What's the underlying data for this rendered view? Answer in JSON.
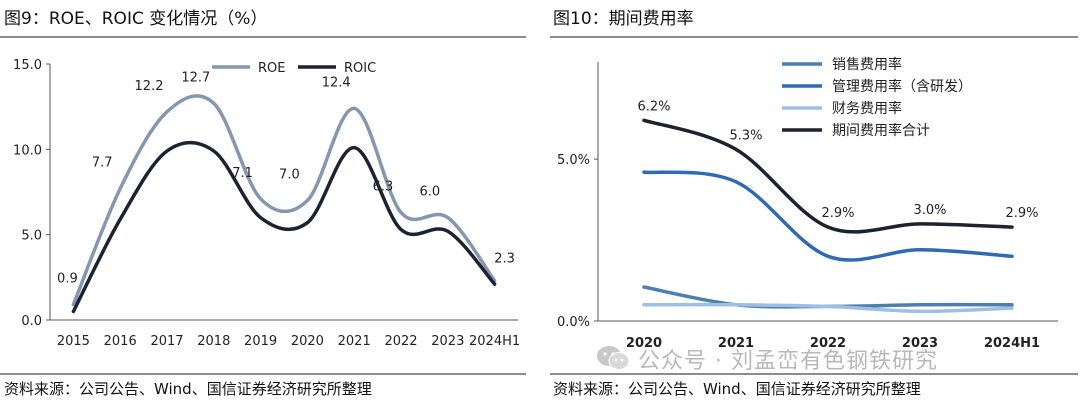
{
  "charts": [
    {
      "title": "图9：ROE、ROIC 变化情况（%）",
      "source": "资料来源：公司公告、Wind、国信证券经济研究所整理"
    },
    {
      "title": "图10：期间费用率",
      "source": "资料来源：公司公告、Wind、国信证券经济研究所整理"
    }
  ],
  "watermark": "公众号 · 刘孟峦有色钢铁研究",
  "chart_data": [
    {
      "type": "line",
      "title": "图9：ROE、ROIC 变化情况（%）",
      "categories": [
        "2015",
        "2016",
        "2017",
        "2018",
        "2019",
        "2020",
        "2021",
        "2022",
        "2023",
        "2024H1"
      ],
      "ylim": [
        0,
        15
      ],
      "yticks": [
        "0.0",
        "5.0",
        "10.0",
        "15.0"
      ],
      "legend_position": "top-center",
      "series": [
        {
          "name": "ROE",
          "color": "#8497b0",
          "values": [
            0.9,
            7.7,
            12.2,
            12.7,
            7.1,
            7.0,
            12.4,
            6.3,
            6.0,
            2.3
          ],
          "labels": [
            "0.9",
            "7.7",
            "12.2",
            "12.7",
            "7.1",
            "7.0",
            "12.4",
            "6.3",
            "6.0",
            "2.3"
          ]
        },
        {
          "name": "ROIC",
          "color": "#1c2230",
          "values": [
            0.5,
            5.9,
            9.9,
            9.9,
            6.0,
            5.7,
            10.1,
            5.3,
            5.2,
            2.1
          ]
        }
      ]
    },
    {
      "type": "line",
      "title": "图10：期间费用率",
      "categories": [
        "2020",
        "2021",
        "2022",
        "2023",
        "2024H1"
      ],
      "ylim": [
        0,
        8.0
      ],
      "yticks": [
        "0.0%",
        "5.0%"
      ],
      "legend_position": "top-center",
      "series": [
        {
          "name": "销售费用率",
          "color": "#4a7fb0",
          "values": [
            1.05,
            0.5,
            0.45,
            0.5,
            0.5
          ]
        },
        {
          "name": "管理费用率（含研发）",
          "color": "#2e6bb0",
          "values": [
            4.6,
            4.3,
            2.0,
            2.2,
            2.0
          ]
        },
        {
          "name": "财务费用率",
          "color": "#9dbfe3",
          "values": [
            0.5,
            0.5,
            0.45,
            0.3,
            0.4
          ]
        },
        {
          "name": "期间费用率合计",
          "color": "#1c2230",
          "values": [
            6.2,
            5.3,
            2.9,
            3.0,
            2.9
          ],
          "labels": [
            "6.2%",
            "5.3%",
            "2.9%",
            "3.0%",
            "2.9%"
          ]
        }
      ]
    }
  ]
}
